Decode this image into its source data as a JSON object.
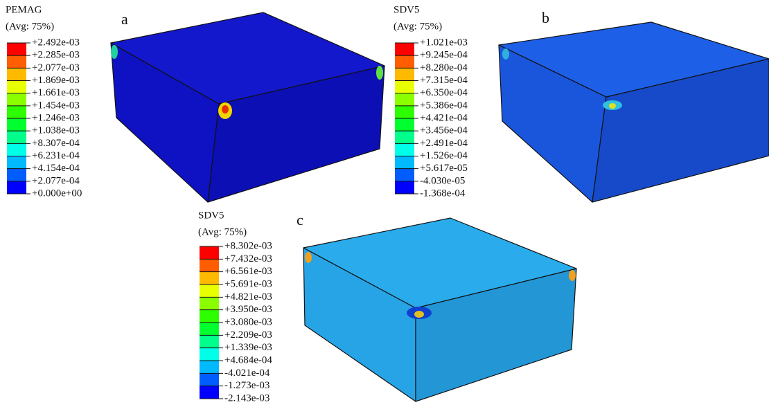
{
  "panels": [
    {
      "label": "a",
      "legend": {
        "title": "PEMAG",
        "subtitle": "(Avg: 75%)",
        "values": [
          "+2.492e-03",
          "+2.285e-03",
          "+2.077e-03",
          "+1.869e-03",
          "+1.661e-03",
          "+1.454e-03",
          "+1.246e-03",
          "+1.038e-03",
          "+8.307e-04",
          "+6.231e-04",
          "+4.154e-04",
          "+2.077e-04",
          "+0.000e+00"
        ]
      }
    },
    {
      "label": "b",
      "legend": {
        "title": "SDV5",
        "subtitle": "(Avg: 75%)",
        "values": [
          "+1.021e-03",
          "+9.245e-04",
          "+8.280e-04",
          "+7.315e-04",
          "+6.350e-04",
          "+5.386e-04",
          "+4.421e-04",
          "+3.456e-04",
          "+2.491e-04",
          "+1.526e-04",
          "+5.617e-05",
          "-4.030e-05",
          "-1.368e-04"
        ]
      }
    },
    {
      "label": "c",
      "legend": {
        "title": "SDV5",
        "subtitle": "(Avg: 75%)",
        "values": [
          "+8.302e-03",
          "+7.432e-03",
          "+6.561e-03",
          "+5.691e-03",
          "+4.821e-03",
          "+3.950e-03",
          "+3.080e-03",
          "+2.209e-03",
          "+1.339e-03",
          "+4.684e-04",
          "-4.021e-04",
          "-1.273e-03",
          "-2.143e-03"
        ]
      }
    }
  ]
}
